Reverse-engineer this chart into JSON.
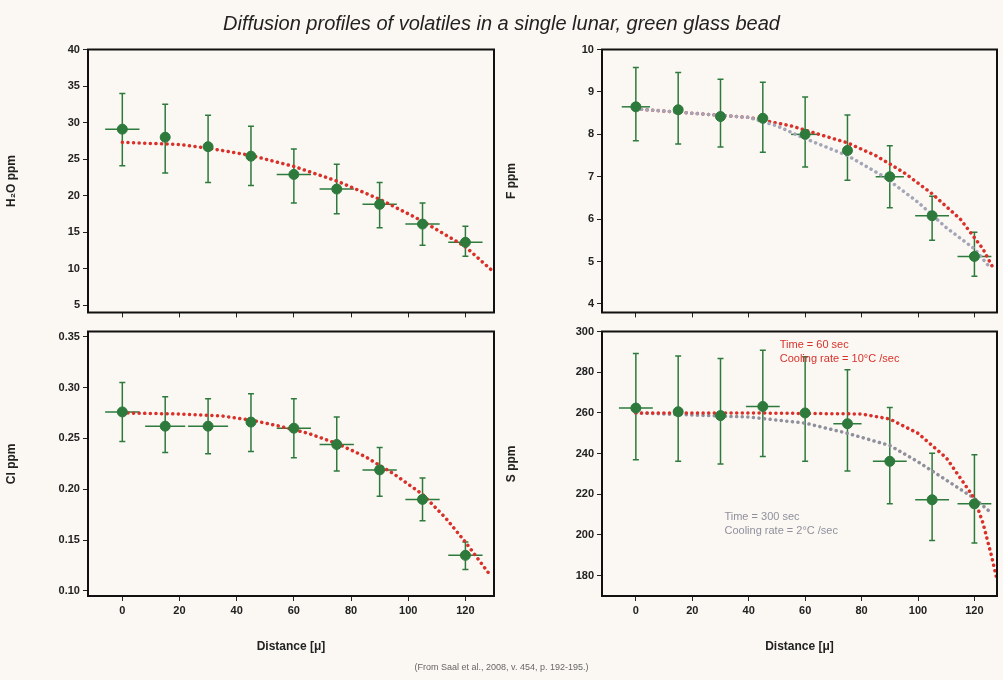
{
  "chart_data": [
    {
      "type": "scatter",
      "title": "Diffusion profiles of volatiles in a single lunar, green glass bead",
      "ylabel": "H₂O ppm",
      "xlim": [
        -12,
        130
      ],
      "xticks": [
        0,
        20,
        40,
        60,
        80,
        100,
        120
      ],
      "ylim": [
        4,
        40
      ],
      "yticks": [
        5,
        10,
        15,
        20,
        25,
        30,
        35,
        40
      ],
      "tick_labels": "y",
      "legend": false,
      "grid": false,
      "marker": "circle",
      "series": [
        {
          "type": "scatter",
          "color": "#2d7a3c",
          "x": [
            0,
            15,
            30,
            45,
            60,
            75,
            90,
            105,
            120
          ],
          "values": [
            29.1,
            28.0,
            26.7,
            25.4,
            22.9,
            20.9,
            18.8,
            16.1,
            13.6
          ],
          "errors": [
            [
              24.1,
              34.0
            ],
            [
              23.1,
              32.5
            ],
            [
              21.8,
              31.0
            ],
            [
              21.4,
              29.5
            ],
            [
              19.0,
              26.4
            ],
            [
              17.5,
              24.3
            ],
            [
              15.6,
              21.8
            ],
            [
              13.2,
              19.0
            ],
            [
              11.7,
              15.8
            ]
          ],
          "xerrors": [
            6,
            null,
            null,
            null,
            6,
            6,
            6,
            6,
            6
          ]
        },
        {
          "type": "line",
          "color": "#d9302a",
          "line_style": "dotted",
          "marker": "none",
          "x": [
            0,
            20,
            30,
            45,
            60,
            75,
            90,
            105,
            120,
            130
          ],
          "values": [
            27.3,
            27.0,
            26.5,
            25.5,
            24.0,
            22.0,
            19.5,
            16.5,
            13.0,
            9.5
          ]
        }
      ]
    },
    {
      "type": "scatter",
      "ylabel": "F ppm",
      "xlim": [
        -12,
        128
      ],
      "xticks": [
        0,
        20,
        40,
        60,
        80,
        100,
        120
      ],
      "ylim": [
        3.8,
        10
      ],
      "yticks": [
        4,
        5,
        6,
        7,
        8,
        9,
        10
      ],
      "tick_labels": "y",
      "legend": false,
      "grid": false,
      "marker": "circle",
      "series": [
        {
          "type": "line",
          "color": "#a4a6b8",
          "line_style": "dotted",
          "marker": "none",
          "x": [
            0,
            40,
            50,
            60,
            75,
            88,
            100,
            110,
            120,
            125
          ],
          "values": [
            8.6,
            8.4,
            8.2,
            7.9,
            7.5,
            7.0,
            6.4,
            5.8,
            5.3,
            4.9
          ]
        },
        {
          "type": "line",
          "color": "#d9302a",
          "line_style": "dotted",
          "marker": "none",
          "x": [
            0,
            40,
            55,
            65,
            75,
            85,
            95,
            105,
            115,
            123,
            127
          ],
          "values": [
            8.6,
            8.4,
            8.2,
            8.0,
            7.8,
            7.5,
            7.1,
            6.6,
            6.0,
            5.3,
            4.8
          ]
        },
        {
          "type": "scatter",
          "color": "#2d7a3c",
          "x": [
            0,
            15,
            30,
            45,
            60,
            75,
            90,
            105,
            120
          ],
          "values": [
            8.65,
            8.58,
            8.42,
            8.38,
            8.0,
            7.62,
            7.0,
            6.08,
            5.12
          ],
          "errors": [
            [
              7.85,
              9.58
            ],
            [
              7.77,
              9.46
            ],
            [
              7.7,
              9.3
            ],
            [
              7.58,
              9.23
            ],
            [
              7.23,
              8.88
            ],
            [
              6.92,
              8.46
            ],
            [
              6.27,
              7.73
            ],
            [
              5.5,
              6.54
            ],
            [
              4.65,
              5.69
            ]
          ],
          "xerrors": [
            5,
            null,
            null,
            null,
            5,
            null,
            5,
            6,
            6
          ]
        }
      ]
    },
    {
      "type": "scatter",
      "ylabel": "Cl ppm",
      "xlabel": "Distance [μ]",
      "xlim": [
        -12,
        130
      ],
      "xticks": [
        0,
        20,
        40,
        60,
        80,
        100,
        120
      ],
      "ylim": [
        0.095,
        0.355
      ],
      "yticks": [
        {
          "value": 0.1,
          "label": "0.10"
        },
        {
          "value": 0.15,
          "label": "0.15"
        },
        {
          "value": 0.2,
          "label": "0.20"
        },
        {
          "value": 0.25,
          "label": "0.25"
        },
        {
          "value": 0.3,
          "label": "0.30"
        },
        {
          "value": 0.35,
          "label": "0.35"
        }
      ],
      "legend": false,
      "grid": false,
      "marker": "circle",
      "annotations": [
        "(From Saal et al., 2008, v. 454, p. 192-195.)"
      ],
      "series": [
        {
          "type": "scatter",
          "color": "#2d7a3c",
          "x": [
            0,
            15,
            30,
            45,
            60,
            75,
            90,
            105,
            120
          ],
          "values": [
            0.276,
            0.262,
            0.262,
            0.266,
            0.26,
            0.244,
            0.219,
            0.19,
            0.135
          ],
          "errors": [
            [
              0.247,
              0.305
            ],
            [
              0.236,
              0.291
            ],
            [
              0.235,
              0.289
            ],
            [
              0.237,
              0.294
            ],
            [
              0.231,
              0.289
            ],
            [
              0.218,
              0.271
            ],
            [
              0.193,
              0.241
            ],
            [
              0.169,
              0.211
            ],
            [
              0.121,
              0.148
            ]
          ],
          "xerrors": [
            6,
            7,
            7,
            null,
            6,
            6,
            6,
            6,
            6
          ]
        },
        {
          "type": "line",
          "color": "#d9302a",
          "line_style": "dotted",
          "marker": "none",
          "x": [
            0,
            20,
            35,
            45,
            55,
            65,
            75,
            85,
            95,
            105,
            113,
            120,
            128
          ],
          "values": [
            0.275,
            0.274,
            0.272,
            0.268,
            0.262,
            0.255,
            0.245,
            0.232,
            0.215,
            0.195,
            0.172,
            0.148,
            0.118
          ]
        }
      ]
    },
    {
      "type": "scatter",
      "ylabel": "S ppm",
      "xlabel": "Distance [μ]",
      "xlim": [
        -12,
        128
      ],
      "xticks": [
        0,
        20,
        40,
        60,
        80,
        100,
        120
      ],
      "ylim": [
        170,
        300
      ],
      "yticks": [
        180,
        200,
        220,
        240,
        260,
        280,
        300
      ],
      "legend": false,
      "grid": false,
      "marker": "circle",
      "series": [
        {
          "type": "line",
          "name": "Time = 60 sec\nCooling rate = 10°C /sec",
          "color": "#d9302a",
          "line_style": "dotted",
          "marker": "none",
          "x": [
            0,
            40,
            80,
            90,
            100,
            110,
            115,
            120,
            123,
            126,
            128
          ],
          "values": [
            260,
            260,
            259.5,
            257,
            250,
            238,
            228,
            218,
            206,
            190,
            178
          ]
        },
        {
          "type": "line",
          "name": "Time = 300 sec\nCooling rate = 2°C /sec",
          "color": "#8f909c",
          "line_style": "dotted",
          "marker": "none",
          "x": [
            0,
            40,
            60,
            75,
            90,
            100,
            110,
            120,
            125
          ],
          "values": [
            260,
            258,
            255,
            250,
            244,
            236,
            227,
            218,
            212
          ]
        },
        {
          "type": "scatter",
          "color": "#2d7a3c",
          "x": [
            0,
            15,
            30,
            45,
            60,
            75,
            90,
            105,
            120
          ],
          "values": [
            262.4,
            260.6,
            258.7,
            263.2,
            260.0,
            254.7,
            236.2,
            217.3,
            215.3
          ],
          "errors": [
            [
              237,
              289.2
            ],
            [
              236.2,
              288
            ],
            [
              234.9,
              286.8
            ],
            [
              238.6,
              290.8
            ],
            [
              236.2,
              287.6
            ],
            [
              231.4,
              281.2
            ],
            [
              215.3,
              262.7
            ],
            [
              197.3,
              240.2
            ],
            [
              196,
              239.4
            ]
          ],
          "xerrors": [
            6,
            null,
            null,
            6,
            null,
            5,
            6,
            6,
            6
          ]
        }
      ]
    }
  ]
}
